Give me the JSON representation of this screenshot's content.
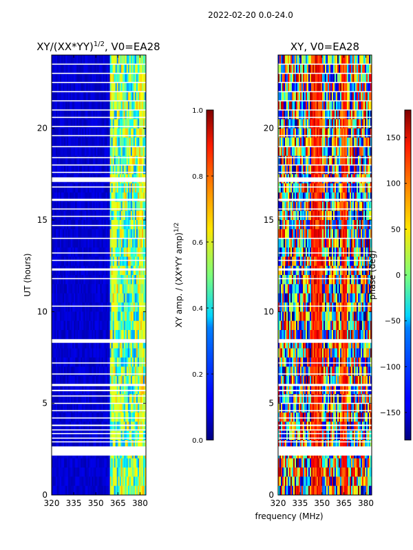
{
  "figure_title": "2022-02-20 0.0-24.0",
  "shared_xlabel": "frequency (MHz)",
  "chart_data": [
    {
      "type": "heatmap",
      "title": "XY/(XX*YY)",
      "title_exp": "1/2",
      "title_suffix": ", V0=EA28",
      "ylabel": "UT (hours)",
      "xlim": [
        320,
        384
      ],
      "ylim": [
        0,
        24
      ],
      "xticks": [
        320,
        335,
        350,
        365,
        380
      ],
      "yticks": [
        0,
        5,
        10,
        15,
        20
      ],
      "colorbar": {
        "label": "XY amp. / (XX*YY amp)",
        "label_exp": "1/2",
        "range": [
          0.0,
          1.0
        ],
        "ticks": [
          "0.0",
          "0.2",
          "0.4",
          "0.6",
          "0.8",
          "1.0"
        ],
        "colormap": "jet"
      },
      "flagged_hours": [
        2.4,
        2.9,
        3.1,
        3.35,
        3.55,
        3.8,
        4.2,
        4.6,
        5.0,
        5.4,
        5.7,
        6.0,
        6.6,
        7.2,
        8.4,
        10.3,
        11.8,
        12.3,
        12.8,
        13.2,
        14.0,
        14.7,
        15.2,
        15.6,
        16.1,
        16.8,
        17.2,
        17.6,
        18.0,
        18.4,
        19.0,
        19.6,
        20.1,
        20.6,
        21.0,
        21.5,
        22.0,
        22.5,
        23.0,
        23.5
      ],
      "flag_widths": [
        0.5,
        0.06,
        0.06,
        0.06,
        0.06,
        0.08,
        0.06,
        0.06,
        0.06,
        0.06,
        0.08,
        0.12,
        0.06,
        0.06,
        0.2,
        0.06,
        0.06,
        0.12,
        0.06,
        0.06,
        0.06,
        0.06,
        0.06,
        0.06,
        0.12,
        0.06,
        0.25,
        0.06,
        0.06,
        0.06,
        0.06,
        0.06,
        0.06,
        0.06,
        0.06,
        0.06,
        0.06,
        0.06,
        0.06,
        0.06
      ]
    },
    {
      "type": "heatmap",
      "title": "XY, V0=EA28",
      "ylabel": "phase (deg)",
      "xlim": [
        320,
        384
      ],
      "ylim": [
        0,
        24
      ],
      "xticks": [
        320,
        335,
        350,
        365,
        380
      ],
      "yticks": [
        0,
        5,
        10,
        15,
        20
      ],
      "colorbar": {
        "range": [
          -180,
          180
        ],
        "ticks": [
          "−150",
          "−100",
          "−50",
          "0",
          "50",
          "100",
          "150"
        ],
        "tick_values": [
          -150,
          -100,
          -50,
          0,
          50,
          100,
          150
        ],
        "colormap": "jet"
      },
      "flagged_hours": [
        2.4,
        2.9,
        3.1,
        3.35,
        3.55,
        3.8,
        4.2,
        4.6,
        5.0,
        5.4,
        5.7,
        6.0,
        6.6,
        7.2,
        8.4,
        10.3,
        11.8,
        12.3,
        12.8,
        13.2,
        14.0,
        14.7,
        15.2,
        15.6,
        16.1,
        16.8,
        17.2,
        17.6,
        18.0,
        18.4,
        19.0,
        19.6,
        20.1,
        20.6,
        21.0,
        21.5,
        22.0,
        22.5,
        23.0,
        23.5
      ],
      "flag_widths": [
        0.5,
        0.06,
        0.06,
        0.06,
        0.06,
        0.08,
        0.06,
        0.06,
        0.06,
        0.06,
        0.08,
        0.12,
        0.06,
        0.06,
        0.2,
        0.06,
        0.06,
        0.12,
        0.06,
        0.06,
        0.06,
        0.06,
        0.06,
        0.06,
        0.12,
        0.06,
        0.25,
        0.06,
        0.06,
        0.06,
        0.06,
        0.06,
        0.06,
        0.06,
        0.06,
        0.06,
        0.06,
        0.06,
        0.06,
        0.06
      ]
    }
  ]
}
